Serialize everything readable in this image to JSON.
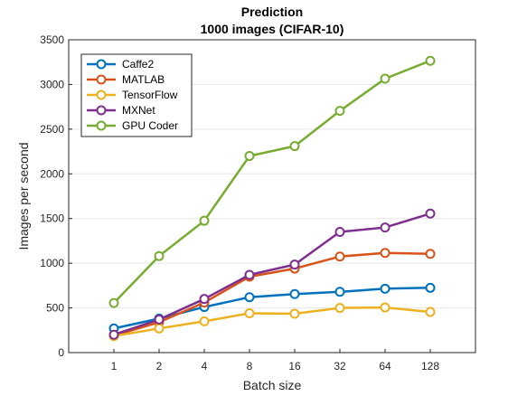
{
  "chart_data": {
    "type": "line",
    "title": "Prediction",
    "subtitle": "1000 images (CIFAR-10)",
    "xlabel": "Batch size",
    "ylabel": "Images per second",
    "categories": [
      "1",
      "2",
      "4",
      "8",
      "16",
      "32",
      "64",
      "128"
    ],
    "ylim": [
      0,
      3500
    ],
    "yticks": [
      0,
      500,
      1000,
      1500,
      2000,
      2500,
      3000,
      3500
    ],
    "grid": true,
    "legend_position": "top-left",
    "series": [
      {
        "name": "Caffe2",
        "color": "#0072BD",
        "values": [
          270,
          380,
          510,
          620,
          655,
          680,
          715,
          725
        ]
      },
      {
        "name": "MATLAB",
        "color": "#D95319",
        "values": [
          190,
          340,
          560,
          850,
          940,
          1075,
          1115,
          1105
        ]
      },
      {
        "name": "TensorFlow",
        "color": "#EDB120",
        "values": [
          185,
          270,
          350,
          440,
          435,
          500,
          505,
          455
        ]
      },
      {
        "name": "MXNet",
        "color": "#7E2F8E",
        "values": [
          200,
          370,
          600,
          870,
          985,
          1350,
          1400,
          1555
        ]
      },
      {
        "name": "GPU Coder",
        "color": "#77AC30",
        "values": [
          555,
          1080,
          1475,
          2200,
          2310,
          2705,
          3065,
          3265
        ]
      }
    ]
  }
}
